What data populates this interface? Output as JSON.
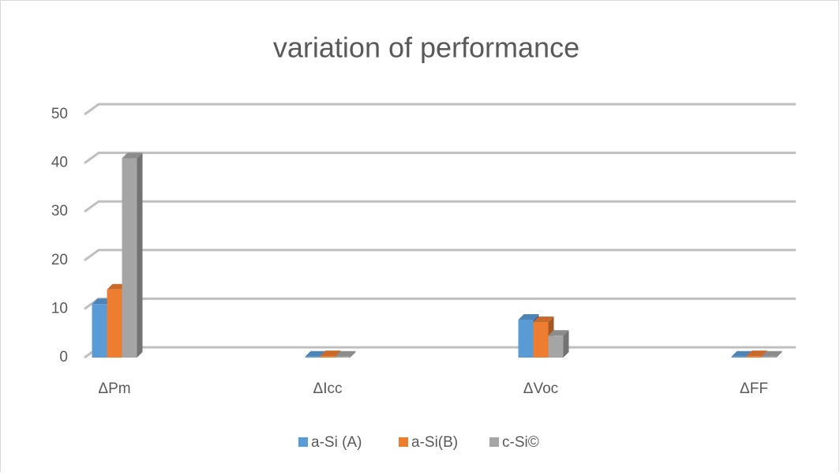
{
  "chart_data": {
    "type": "bar3d",
    "title": "variation of performance",
    "categories": [
      "ΔPm",
      "ΔIcc",
      "ΔVoc",
      "ΔFF"
    ],
    "series": [
      {
        "name": "a-Si (A)",
        "color": "#5b9bd5",
        "values": [
          11,
          0.2,
          7.8,
          0.2
        ]
      },
      {
        "name": "a-Si(B)",
        "color": "#ed7d31",
        "values": [
          14,
          0.3,
          7.3,
          0.3
        ]
      },
      {
        "name": "c-Si©",
        "color": "#a5a5a5",
        "values": [
          41,
          0.2,
          4.5,
          0.2
        ]
      }
    ],
    "ylim": [
      0,
      50
    ],
    "yticks": [
      0,
      10,
      20,
      30,
      40,
      50
    ],
    "grid": true,
    "legend": "bottom"
  }
}
